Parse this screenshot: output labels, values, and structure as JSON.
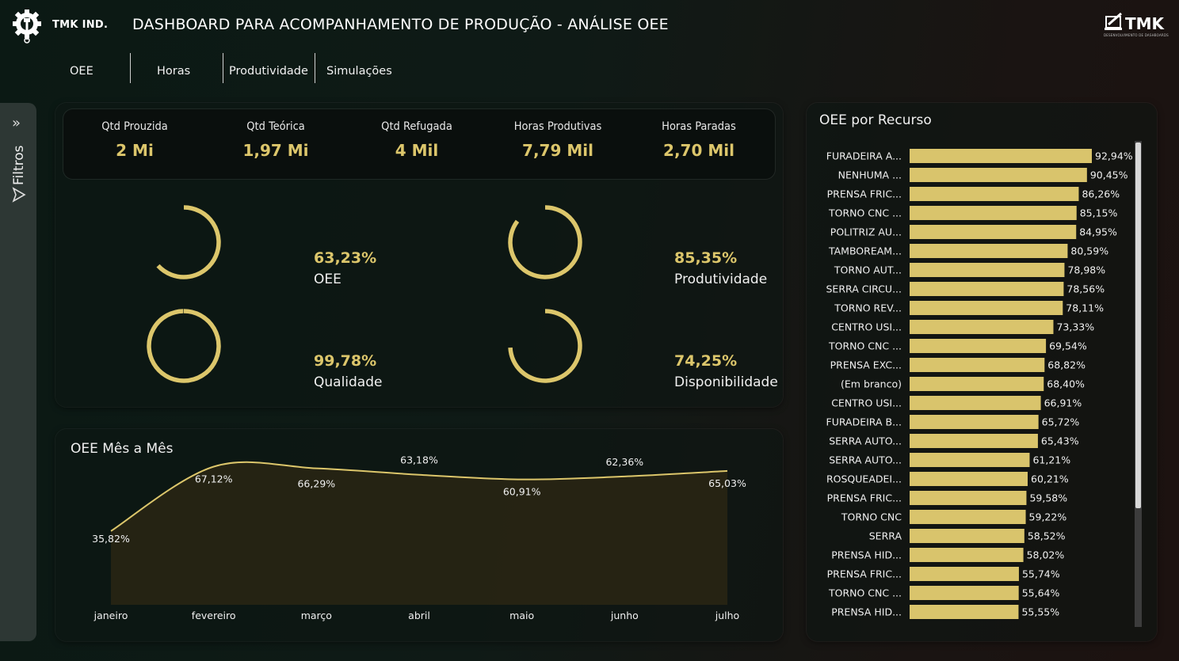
{
  "header": {
    "brand": "TMK IND.",
    "title": "DASHBOARD PARA ACOMPANHAMENTO DE PRODUÇÃO - ANÁLISE OEE",
    "logo_text": "TMK",
    "logo_subtitle": "DESENVOLVIMENTO DE DASHBOARDS"
  },
  "tabs": [
    {
      "label": "OEE"
    },
    {
      "label": "Horas"
    },
    {
      "label": "Produtividade"
    },
    {
      "label": "Simulações"
    }
  ],
  "filter": {
    "label": "Filtros",
    "chevron": "»"
  },
  "kpis": [
    {
      "label": "Qtd Prouzida",
      "value": "2 Mi"
    },
    {
      "label": "Qtd Teórica",
      "value": "1,97 Mi"
    },
    {
      "label": "Qtd Refugada",
      "value": "4 Mil"
    },
    {
      "label": "Horas Produtivas",
      "value": "7,79 Mil"
    },
    {
      "label": "Horas Paradas",
      "value": "2,70 Mil"
    }
  ],
  "gauges": [
    {
      "pct": "63,23%",
      "label": "OEE",
      "fraction": 0.6323
    },
    {
      "pct": "85,35%",
      "label": "Produtividade",
      "fraction": 0.8535
    },
    {
      "pct": "99,78%",
      "label": "Qualidade",
      "fraction": 0.9978
    },
    {
      "pct": "74,25%",
      "label": "Disponibilidade",
      "fraction": 0.7425
    }
  ],
  "colors": {
    "accent": "#dcc66b",
    "bar": "#d9c46c",
    "panel": "#0c1613"
  },
  "chart_data": [
    {
      "type": "area",
      "title": "OEE Mês a Mês",
      "categories": [
        "janeiro",
        "fevereiro",
        "março",
        "abril",
        "maio",
        "junho",
        "julho"
      ],
      "values": [
        35.82,
        67.12,
        66.29,
        63.18,
        60.91,
        62.36,
        65.03
      ],
      "labels": [
        "35,82%",
        "67,12%",
        "66,29%",
        "63,18%",
        "60,91%",
        "62,36%",
        "65,03%"
      ],
      "grid": false
    },
    {
      "type": "bar",
      "orientation": "horizontal",
      "title": "OEE por Recurso",
      "categories": [
        "FURADEIRA A...",
        "NENHUMA ...",
        "PRENSA FRIC...",
        "TORNO CNC ...",
        "POLITRIZ AU...",
        "TAMBOREAM...",
        "TORNO AUT...",
        "SERRA CIRCU...",
        "TORNO REV...",
        "CENTRO USI...",
        "TORNO CNC ...",
        "PRENSA EXC...",
        "(Em branco)",
        "CENTRO USI...",
        "FURADEIRA B...",
        "SERRA AUTO...",
        "SERRA AUTO...",
        "ROSQUEADEI...",
        "PRENSA FRIC...",
        "TORNO CNC",
        "SERRA",
        "PRENSA HID...",
        "PRENSA FRIC...",
        "TORNO CNC ...",
        "PRENSA HID..."
      ],
      "values": [
        92.94,
        90.45,
        86.26,
        85.15,
        84.95,
        80.59,
        78.98,
        78.56,
        78.11,
        73.33,
        69.54,
        68.82,
        68.4,
        66.91,
        65.72,
        65.43,
        61.21,
        60.21,
        59.58,
        59.22,
        58.52,
        58.02,
        55.74,
        55.64,
        55.55
      ],
      "labels": [
        "92,94%",
        "90,45%",
        "86,26%",
        "85,15%",
        "84,95%",
        "80,59%",
        "78,98%",
        "78,56%",
        "78,11%",
        "73,33%",
        "69,54%",
        "68,82%",
        "68,40%",
        "66,91%",
        "65,72%",
        "65,43%",
        "61,21%",
        "60,21%",
        "59,58%",
        "59,22%",
        "58,52%",
        "58,02%",
        "55,74%",
        "55,64%",
        "55,55%"
      ]
    }
  ]
}
